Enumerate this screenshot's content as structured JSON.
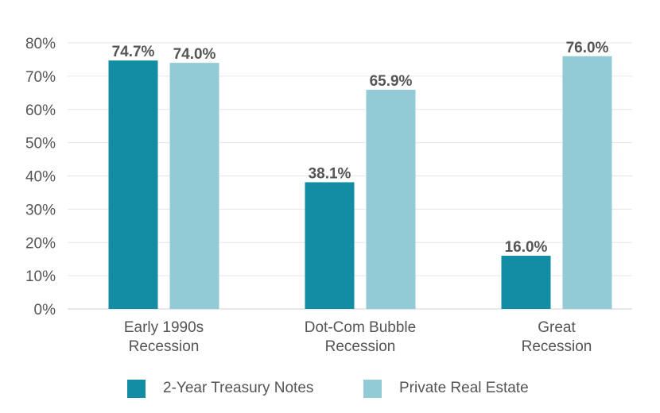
{
  "chart_data": {
    "type": "bar",
    "title": "",
    "xlabel": "",
    "ylabel": "",
    "ylim": [
      0,
      80
    ],
    "yticks": [
      0,
      10,
      20,
      30,
      40,
      50,
      60,
      70,
      80
    ],
    "tick_format": "{v}%",
    "grid": true,
    "legend_position": "bottom",
    "categories": [
      [
        "Early 1990s",
        "Recession"
      ],
      [
        "Dot-Com Bubble",
        "Recession"
      ],
      [
        "Great",
        "Recession"
      ]
    ],
    "series": [
      {
        "name": "2-Year Treasury Notes",
        "color": "#138da3",
        "values": [
          74.7,
          38.1,
          16.0
        ],
        "labels": [
          "74.7%",
          "38.1%",
          "16.0%"
        ]
      },
      {
        "name": "Private Real Estate",
        "color": "#92cbd6",
        "values": [
          74.0,
          65.9,
          76.0
        ],
        "labels": [
          "74.0%",
          "65.9%",
          "76.0%"
        ]
      }
    ]
  }
}
